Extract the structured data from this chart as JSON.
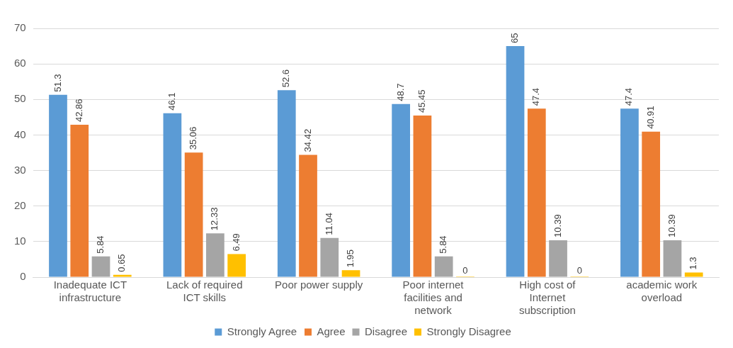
{
  "chart_data": {
    "type": "bar",
    "categories": [
      "Inadequate ICT infrastructure",
      "Lack of required ICT skills",
      "Poor power supply",
      "Poor internet facilities and network",
      "High cost of Internet subscription",
      "academic work overload"
    ],
    "series": [
      {
        "name": "Strongly Agree",
        "color": "#5b9bd5",
        "values": [
          51.3,
          46.1,
          52.6,
          48.7,
          65,
          47.4
        ]
      },
      {
        "name": "Agree",
        "color": "#ed7d31",
        "values": [
          42.86,
          35.06,
          34.42,
          45.45,
          47.4,
          40.91
        ]
      },
      {
        "name": "Disagree",
        "color": "#a5a5a5",
        "values": [
          5.84,
          12.33,
          11.04,
          5.84,
          10.39,
          10.39
        ]
      },
      {
        "name": "Strongly Disagree",
        "color": "#ffc000",
        "values": [
          0.65,
          6.49,
          1.95,
          0,
          0,
          1.3
        ]
      }
    ],
    "ylim": [
      0,
      70
    ],
    "yticks": [
      0,
      10,
      20,
      30,
      40,
      50,
      60,
      70
    ],
    "grid": "y",
    "legend": "bottom",
    "data_labels": true
  }
}
